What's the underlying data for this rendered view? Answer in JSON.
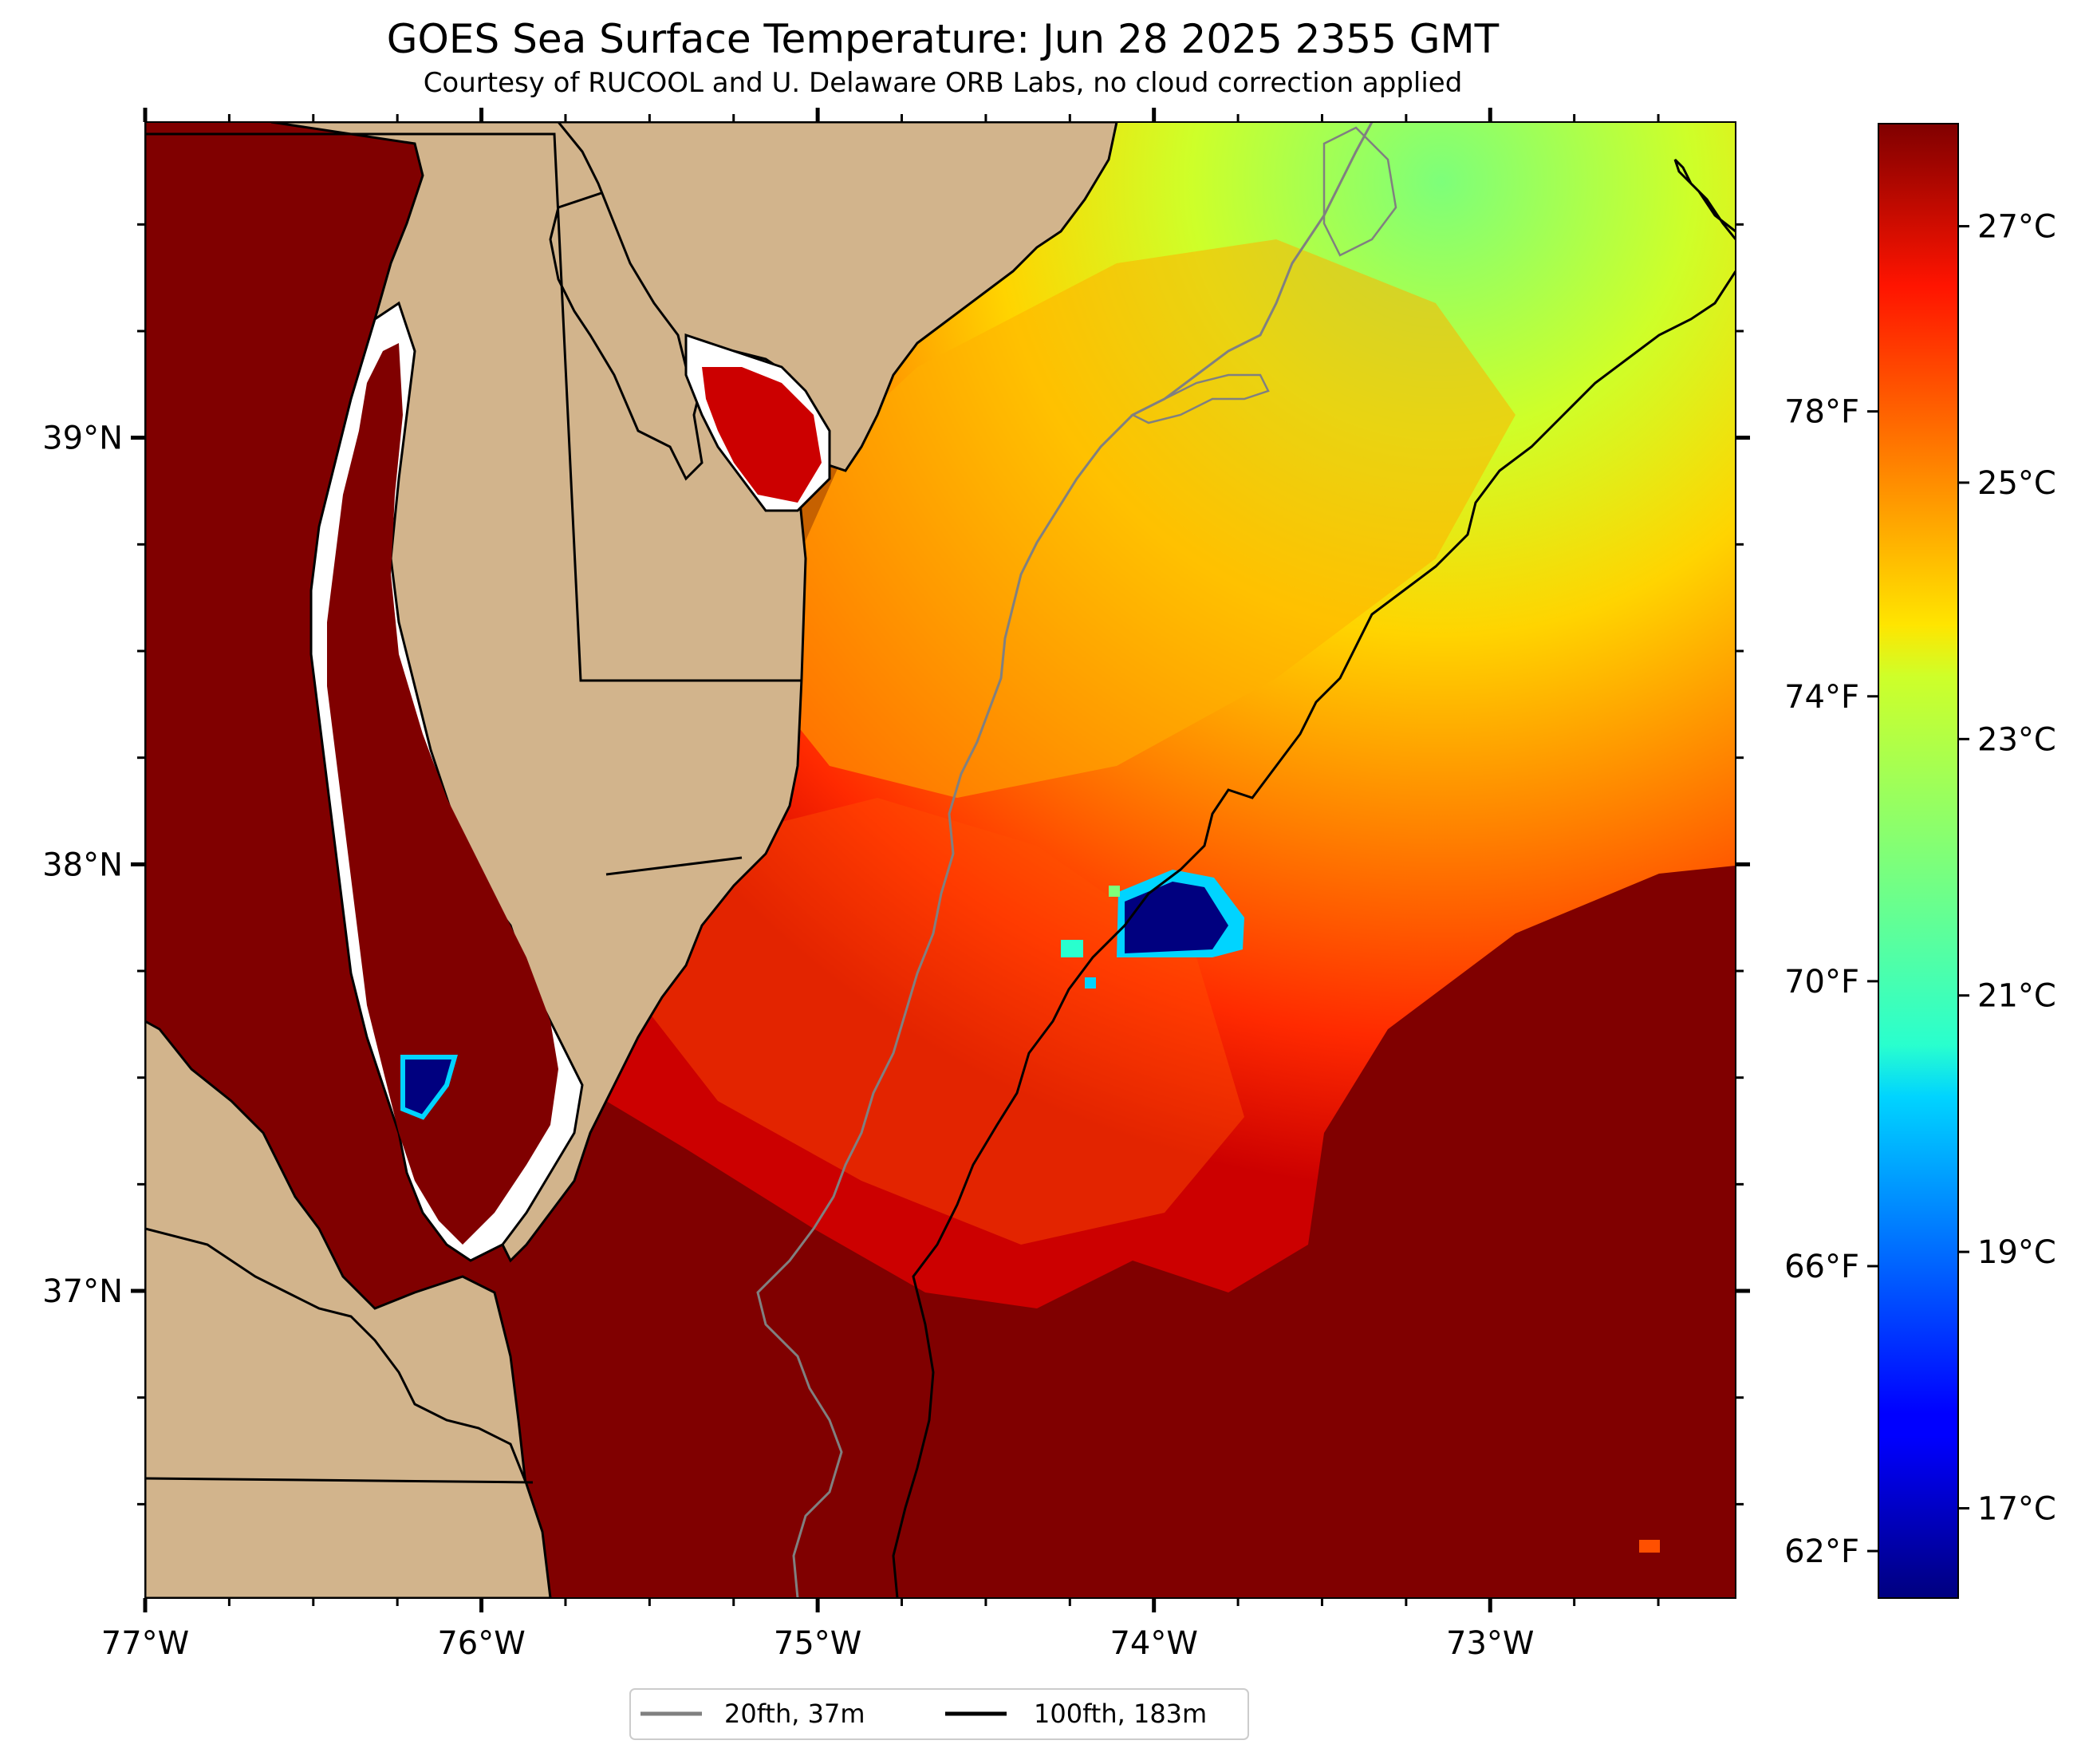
{
  "header": {
    "title": "GOES Sea Surface Temperature: Jun 28 2025 2355 GMT",
    "subtitle": "Courtesy of RUCOOL and U. Delaware ORB Labs, no cloud correction applied"
  },
  "map": {
    "extent": {
      "lon": [
        -77.0,
        -72.27
      ],
      "lat": [
        36.28,
        39.74
      ]
    },
    "lon_ticks": [
      {
        "lon": -77,
        "label": "77°W"
      },
      {
        "lon": -76,
        "label": "76°W"
      },
      {
        "lon": -75,
        "label": "75°W"
      },
      {
        "lon": -74,
        "label": "74°W"
      },
      {
        "lon": -73,
        "label": "73°W"
      }
    ],
    "lat_ticks": [
      {
        "lat": 39,
        "label": "39°N"
      },
      {
        "lat": 38,
        "label": "38°N"
      },
      {
        "lat": 37,
        "label": "37°N"
      }
    ],
    "colors": {
      "land": "#d2b48c",
      "coastline": "#000000",
      "sst_max": "#800000",
      "sst_min": "#00007f"
    }
  },
  "colorbar": {
    "range_c": [
      16.3,
      27.8
    ],
    "celsius_ticks": [
      {
        "value": 27,
        "label": "27°C"
      },
      {
        "value": 25,
        "label": "25°C"
      },
      {
        "value": 23,
        "label": "23°C"
      },
      {
        "value": 21,
        "label": "21°C"
      },
      {
        "value": 19,
        "label": "19°C"
      },
      {
        "value": 17,
        "label": "17°C"
      }
    ],
    "fahrenheit_ticks": [
      {
        "value": 78,
        "label": "78°F"
      },
      {
        "value": 74,
        "label": "74°F"
      },
      {
        "value": 70,
        "label": "70°F"
      },
      {
        "value": 66,
        "label": "66°F"
      },
      {
        "value": 62,
        "label": "62°F"
      }
    ],
    "colormap": "jet"
  },
  "legend": {
    "items": [
      {
        "label": "20fth, 37m",
        "color": "#808080"
      },
      {
        "label": "100fth, 183m",
        "color": "#000000"
      }
    ]
  }
}
